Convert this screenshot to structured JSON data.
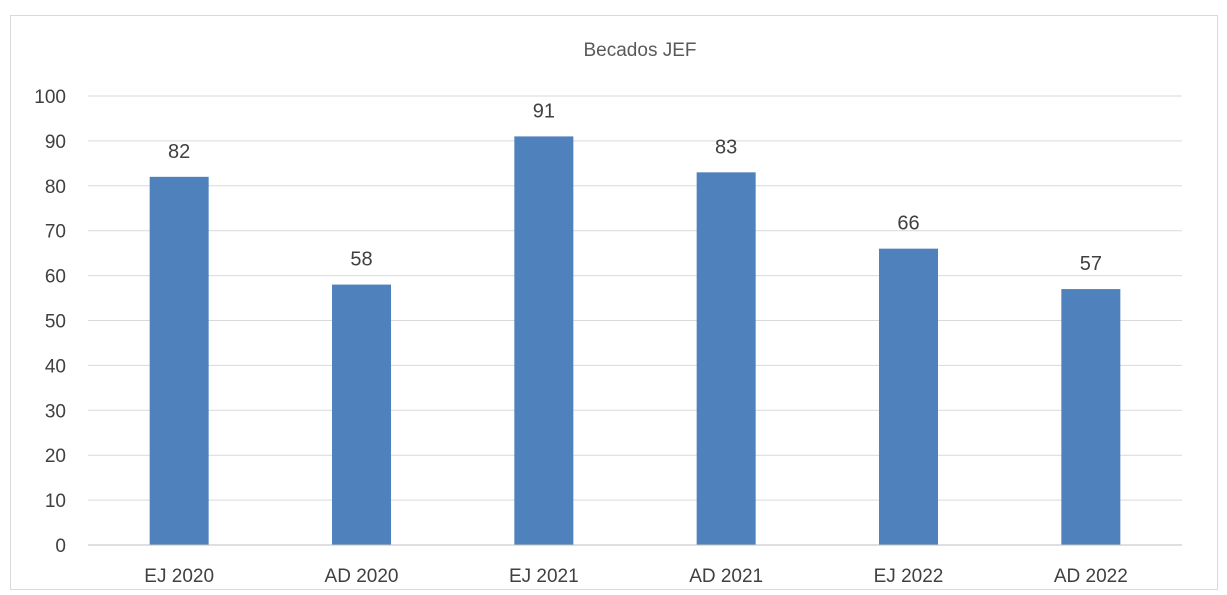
{
  "chart_data": {
    "type": "bar",
    "title": "Becados JEF",
    "categories": [
      "EJ 2020",
      "AD 2020",
      "EJ 2021",
      "AD 2021",
      "EJ 2022",
      "AD 2022"
    ],
    "values": [
      82,
      58,
      91,
      83,
      66,
      57
    ],
    "data_labels": [
      "82",
      "58",
      "91",
      "83",
      "66",
      "57"
    ],
    "y_ticks": [
      "0",
      "10",
      "20",
      "30",
      "40",
      "50",
      "60",
      "70",
      "80",
      "90",
      "100"
    ],
    "xlabel": "",
    "ylabel": "",
    "ylim": [
      0,
      100
    ],
    "y_step": 10,
    "grid": true,
    "legend": "none",
    "bar_color": "#4f81bd"
  }
}
